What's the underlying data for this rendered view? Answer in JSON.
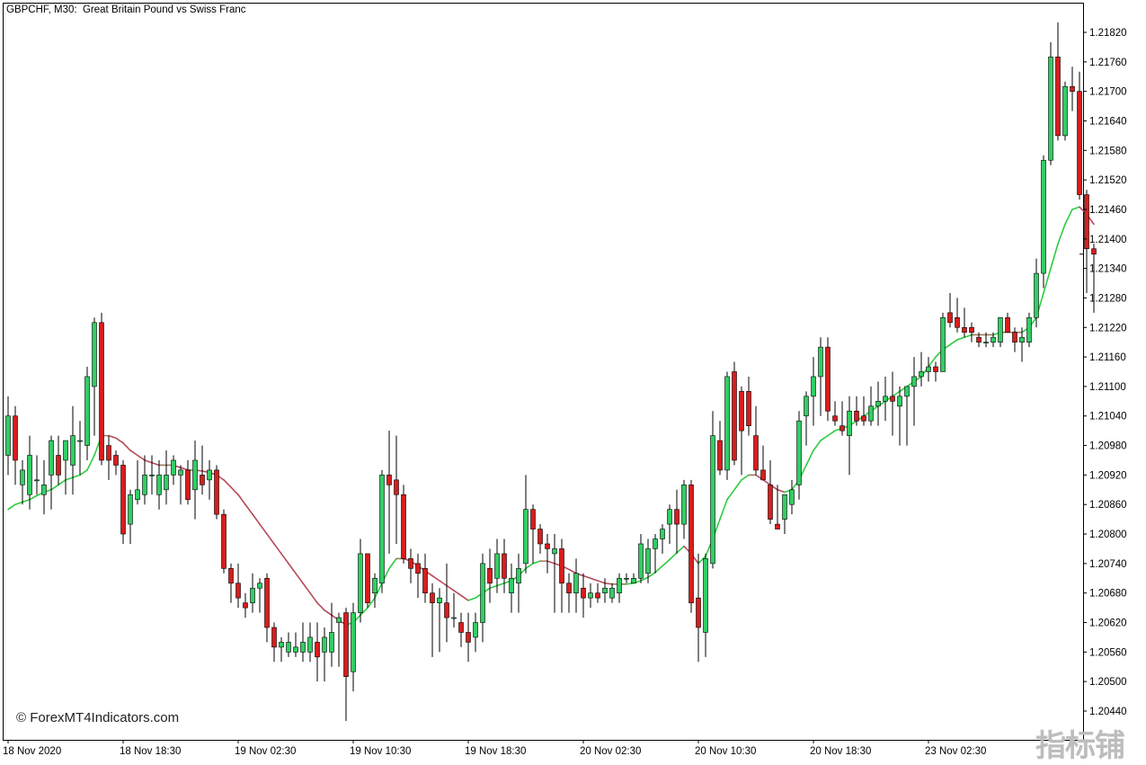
{
  "window": {
    "title": "GBPCHF, M30:  Great Britain Pound vs Swiss Franc",
    "watermark": "© ForexMT4Indicators.com",
    "logo_text": "指标铺"
  },
  "colors": {
    "bull": "#32cd64",
    "bear": "#d81d1d",
    "wick": "#000000",
    "ma_up": "#2ecc40",
    "ma_down": "#b74a5a",
    "ma_flat": "#9a7a5a",
    "grid_axis": "#000000"
  },
  "chart_data": {
    "type": "candlestick",
    "symbol": "GBPCHF",
    "timeframe": "M30",
    "y_ticks": [
      "1.21820",
      "1.21760",
      "1.21700",
      "1.21640",
      "1.21580",
      "1.21520",
      "1.21460",
      "1.21400",
      "1.21340",
      "1.21280",
      "1.21220",
      "1.21160",
      "1.21100",
      "1.21040",
      "1.20980",
      "1.20920",
      "1.20860",
      "1.20800",
      "1.20740",
      "1.20680",
      "1.20620",
      "1.20560",
      "1.20500",
      "1.20440"
    ],
    "x_ticks": [
      {
        "label": "18 Nov 2020",
        "index": 0
      },
      {
        "label": "18 Nov 18:30",
        "index": 16
      },
      {
        "label": "19 Nov 02:30",
        "index": 32
      },
      {
        "label": "19 Nov 10:30",
        "index": 48
      },
      {
        "label": "19 Nov 18:30",
        "index": 64
      },
      {
        "label": "20 Nov 02:30",
        "index": 80
      },
      {
        "label": "20 Nov 10:30",
        "index": 96
      },
      {
        "label": "20 Nov 18:30",
        "index": 112
      },
      {
        "label": "23 Nov 02:30",
        "index": 128
      }
    ],
    "ylim": [
      1.20405,
      1.21865
    ],
    "grid": false,
    "current_price": "1.21369",
    "candles": [
      [
        1.2096,
        1.2108,
        1.2092,
        1.2104
      ],
      [
        1.2104,
        1.2106,
        1.209,
        1.2095
      ],
      [
        1.209,
        1.2095,
        1.2086,
        1.2093
      ],
      [
        1.2088,
        1.21,
        1.2085,
        1.2096
      ],
      [
        1.2091,
        1.2096,
        1.2088,
        1.2091
      ],
      [
        1.2088,
        1.2095,
        1.2084,
        1.209
      ],
      [
        1.2092,
        1.21,
        1.2085,
        1.2099
      ],
      [
        1.2096,
        1.21,
        1.209,
        1.2092
      ],
      [
        1.2095,
        1.2099,
        1.2088,
        1.2099
      ],
      [
        1.2094,
        1.2106,
        1.2088,
        1.21
      ],
      [
        1.2099,
        1.2103,
        1.2092,
        1.2099
      ],
      [
        1.2098,
        1.2114,
        1.2095,
        1.2112
      ],
      [
        1.211,
        1.2124,
        1.21,
        1.2123
      ],
      [
        1.2123,
        1.2125,
        1.2094,
        1.2095
      ],
      [
        1.2098,
        1.21,
        1.2091,
        1.2095
      ],
      [
        1.2096,
        1.2097,
        1.2092,
        1.2094
      ],
      [
        1.2094,
        1.2095,
        1.2078,
        1.208
      ],
      [
        1.2082,
        1.2089,
        1.2078,
        1.2088
      ],
      [
        1.2087,
        1.2095,
        1.2086,
        1.2089
      ],
      [
        1.2088,
        1.2096,
        1.2086,
        1.2092
      ],
      [
        1.2092,
        1.2096,
        1.2088,
        1.2092
      ],
      [
        1.2088,
        1.2095,
        1.2085,
        1.2092
      ],
      [
        1.2089,
        1.2097,
        1.2086,
        1.2092
      ],
      [
        1.2092,
        1.2096,
        1.209,
        1.2095
      ],
      [
        1.2092,
        1.2094,
        1.2086,
        1.2093
      ],
      [
        1.2093,
        1.2095,
        1.2086,
        1.2087
      ],
      [
        1.2089,
        1.2099,
        1.2083,
        1.2095
      ],
      [
        1.2092,
        1.2098,
        1.2088,
        1.209
      ],
      [
        1.2091,
        1.2095,
        1.2087,
        1.2093
      ],
      [
        1.2093,
        1.2094,
        1.2083,
        1.2084
      ],
      [
        1.2084,
        1.2085,
        1.2072,
        1.2073
      ],
      [
        1.2073,
        1.2074,
        1.2066,
        1.207
      ],
      [
        1.207,
        1.2074,
        1.2065,
        1.2067
      ],
      [
        1.2066,
        1.2068,
        1.2063,
        1.2065
      ],
      [
        1.2066,
        1.2072,
        1.2064,
        1.2069
      ],
      [
        1.2069,
        1.2071,
        1.2064,
        1.207
      ],
      [
        1.2071,
        1.2072,
        1.2058,
        1.2061
      ],
      [
        1.2061,
        1.2062,
        1.2054,
        1.2057
      ],
      [
        1.2057,
        1.2059,
        1.2054,
        1.2058
      ],
      [
        1.2056,
        1.206,
        1.2055,
        1.2058
      ],
      [
        1.2056,
        1.206,
        1.2055,
        1.2057
      ],
      [
        1.2056,
        1.2062,
        1.2054,
        1.2058
      ],
      [
        1.2056,
        1.2062,
        1.2054,
        1.2059
      ],
      [
        1.2058,
        1.2062,
        1.205,
        1.2055
      ],
      [
        1.2056,
        1.2061,
        1.205,
        1.2059
      ],
      [
        1.2056,
        1.2066,
        1.2053,
        1.206
      ],
      [
        1.2062,
        1.2064,
        1.2053,
        1.2063
      ],
      [
        1.2064,
        1.2065,
        1.2042,
        1.2051
      ],
      [
        1.2052,
        1.2066,
        1.2048,
        1.2064
      ],
      [
        1.2064,
        1.2079,
        1.2062,
        1.2076
      ],
      [
        1.2076,
        1.2076,
        1.2065,
        1.2066
      ],
      [
        1.2068,
        1.2072,
        1.2065,
        1.2071
      ],
      [
        1.207,
        1.2093,
        1.2068,
        1.2092
      ],
      [
        1.2092,
        1.2101,
        1.2076,
        1.209
      ],
      [
        1.2091,
        1.21,
        1.2078,
        1.2088
      ],
      [
        1.2088,
        1.209,
        1.2074,
        1.2075
      ],
      [
        1.2075,
        1.2077,
        1.207,
        1.2073
      ],
      [
        1.2074,
        1.2076,
        1.2067,
        1.2072
      ],
      [
        1.2073,
        1.2076,
        1.2066,
        1.2068
      ],
      [
        1.2068,
        1.207,
        1.2055,
        1.2066
      ],
      [
        1.2066,
        1.2069,
        1.2056,
        1.2067
      ],
      [
        1.2066,
        1.2074,
        1.2058,
        1.2063
      ],
      [
        1.2063,
        1.2068,
        1.2061,
        1.2063
      ],
      [
        1.2062,
        1.2064,
        1.2057,
        1.206
      ],
      [
        1.206,
        1.2064,
        1.2054,
        1.2058
      ],
      [
        1.2059,
        1.2064,
        1.2056,
        1.2062
      ],
      [
        1.2062,
        1.2076,
        1.2058,
        1.2074
      ],
      [
        1.2073,
        1.2077,
        1.2066,
        1.207
      ],
      [
        1.2071,
        1.2079,
        1.2068,
        1.2076
      ],
      [
        1.2076,
        1.2079,
        1.2068,
        1.2071
      ],
      [
        1.2068,
        1.2074,
        1.2064,
        1.2071
      ],
      [
        1.207,
        1.2076,
        1.2064,
        1.2073
      ],
      [
        1.2074,
        1.2092,
        1.2072,
        1.2085
      ],
      [
        1.2085,
        1.2086,
        1.2074,
        1.2081
      ],
      [
        1.2081,
        1.2082,
        1.2076,
        1.2078
      ],
      [
        1.2078,
        1.208,
        1.2072,
        1.2077
      ],
      [
        1.2076,
        1.208,
        1.2064,
        1.2077
      ],
      [
        1.2077,
        1.2079,
        1.2064,
        1.207
      ],
      [
        1.207,
        1.2072,
        1.2064,
        1.2068
      ],
      [
        1.2068,
        1.2075,
        1.2064,
        1.2072
      ],
      [
        1.2069,
        1.2072,
        1.2063,
        1.2067
      ],
      [
        1.2067,
        1.207,
        1.2065,
        1.2068
      ],
      [
        1.2068,
        1.207,
        1.2066,
        1.2067
      ],
      [
        1.2068,
        1.2071,
        1.2066,
        1.2069
      ],
      [
        1.2067,
        1.207,
        1.2066,
        1.2069
      ],
      [
        1.2068,
        1.2072,
        1.2066,
        1.2071
      ],
      [
        1.2071,
        1.2072,
        1.207,
        1.2071
      ],
      [
        1.207,
        1.2072,
        1.207,
        1.2071
      ],
      [
        1.2071,
        1.208,
        1.207,
        1.2078
      ],
      [
        1.2072,
        1.2079,
        1.207,
        1.2077
      ],
      [
        1.2077,
        1.208,
        1.2072,
        1.2079
      ],
      [
        1.2079,
        1.2082,
        1.2076,
        1.2081
      ],
      [
        1.2082,
        1.2086,
        1.2078,
        1.2085
      ],
      [
        1.2085,
        1.2089,
        1.2076,
        1.2082
      ],
      [
        1.2082,
        1.2091,
        1.2079,
        1.209
      ],
      [
        1.209,
        1.2091,
        1.2064,
        1.2066
      ],
      [
        1.2067,
        1.2076,
        1.2054,
        1.2061
      ],
      [
        1.206,
        1.2076,
        1.2055,
        1.2075
      ],
      [
        1.2074,
        1.2105,
        1.2073,
        1.21
      ],
      [
        1.2099,
        1.2103,
        1.2092,
        1.2093
      ],
      [
        1.2093,
        1.2113,
        1.2091,
        1.2112
      ],
      [
        1.2113,
        1.2115,
        1.2094,
        1.2095
      ],
      [
        1.2109,
        1.211,
        1.2092,
        1.2101
      ],
      [
        1.2109,
        1.2112,
        1.21,
        1.2102
      ],
      [
        1.21,
        1.2106,
        1.2092,
        1.2093
      ],
      [
        1.2093,
        1.2098,
        1.2091,
        1.2091
      ],
      [
        1.209,
        1.2095,
        1.2082,
        1.2083
      ],
      [
        1.2082,
        1.209,
        1.2081,
        1.2081
      ],
      [
        1.2083,
        1.2088,
        1.208,
        1.2088
      ],
      [
        1.2086,
        1.2091,
        1.2084,
        1.2089
      ],
      [
        1.209,
        1.2105,
        1.2087,
        1.2103
      ],
      [
        1.2104,
        1.2109,
        1.2098,
        1.2108
      ],
      [
        1.2108,
        1.2116,
        1.2102,
        1.2112
      ],
      [
        1.2112,
        1.212,
        1.2104,
        1.2118
      ],
      [
        1.2118,
        1.212,
        1.2103,
        1.2105
      ],
      [
        1.2104,
        1.2107,
        1.2102,
        1.2103
      ],
      [
        1.2102,
        1.2107,
        1.21,
        1.2101
      ],
      [
        1.21,
        1.2108,
        1.2092,
        1.2105
      ],
      [
        1.2105,
        1.2108,
        1.2102,
        1.2103
      ],
      [
        1.2104,
        1.2108,
        1.2102,
        1.2103
      ],
      [
        1.2103,
        1.211,
        1.2102,
        1.2106
      ],
      [
        1.2106,
        1.2111,
        1.2102,
        1.2107
      ],
      [
        1.2107,
        1.2112,
        1.2103,
        1.2108
      ],
      [
        1.2108,
        1.2113,
        1.21,
        1.2107
      ],
      [
        1.2106,
        1.211,
        1.2098,
        1.2108
      ],
      [
        1.2108,
        1.211,
        1.2098,
        1.211
      ],
      [
        1.211,
        1.2116,
        1.2102,
        1.2112
      ],
      [
        1.2112,
        1.2117,
        1.211,
        1.2113
      ],
      [
        1.2113,
        1.2116,
        1.2111,
        1.2114
      ],
      [
        1.2114,
        1.2115,
        1.2111,
        1.2113
      ],
      [
        1.2113,
        1.2125,
        1.2113,
        1.2124
      ],
      [
        1.2125,
        1.2129,
        1.2122,
        1.2123
      ],
      [
        1.2124,
        1.2128,
        1.2121,
        1.2122
      ],
      [
        1.2122,
        1.2126,
        1.212,
        1.2121
      ],
      [
        1.2122,
        1.2123,
        1.2119,
        1.2121
      ],
      [
        1.212,
        1.2121,
        1.2118,
        1.2119
      ],
      [
        1.2119,
        1.2121,
        1.2118,
        1.2119
      ],
      [
        1.2119,
        1.2121,
        1.2118,
        1.212
      ],
      [
        1.2119,
        1.2124,
        1.2118,
        1.2124
      ],
      [
        1.2124,
        1.2125,
        1.2121,
        1.2121
      ],
      [
        1.2121,
        1.2122,
        1.2117,
        1.2119
      ],
      [
        1.2119,
        1.2122,
        1.2115,
        1.212
      ],
      [
        1.2119,
        1.2125,
        1.2118,
        1.2124
      ],
      [
        1.2124,
        1.2136,
        1.2122,
        1.2133
      ],
      [
        1.2133,
        1.2157,
        1.213,
        1.2156
      ],
      [
        1.2156,
        1.218,
        1.2155,
        1.2177
      ],
      [
        1.2177,
        1.2184,
        1.216,
        1.2161
      ],
      [
        1.2161,
        1.2172,
        1.216,
        1.2171
      ],
      [
        1.2171,
        1.2175,
        1.2166,
        1.217
      ],
      [
        1.217,
        1.2174,
        1.2148,
        1.2149
      ],
      [
        1.2149,
        1.215,
        1.2129,
        1.2138
      ],
      [
        1.2138,
        1.2139,
        1.2125,
        1.21369
      ]
    ],
    "ma": [
      1.2085,
      1.2086,
      1.20865,
      1.2087,
      1.20878,
      1.20885,
      1.2089,
      1.209,
      1.2091,
      1.20915,
      1.2092,
      1.2093,
      1.2096,
      1.21,
      1.21,
      1.20995,
      1.20985,
      1.2097,
      1.2096,
      1.2095,
      1.20945,
      1.2094,
      1.2094,
      1.2094,
      1.20935,
      1.2093,
      1.2093,
      1.20928,
      1.20925,
      1.2092,
      1.2091,
      1.20895,
      1.2088,
      1.2086,
      1.2084,
      1.2082,
      1.208,
      1.2078,
      1.2076,
      1.2074,
      1.2072,
      1.207,
      1.2068,
      1.2066,
      1.20645,
      1.20635,
      1.20625,
      1.20615,
      1.2062,
      1.20635,
      1.2065,
      1.2067,
      1.207,
      1.2073,
      1.2075,
      1.2075,
      1.20745,
      1.20735,
      1.20725,
      1.20715,
      1.20705,
      1.20695,
      1.20685,
      1.20675,
      1.20665,
      1.2067,
      1.2068,
      1.2069,
      1.20695,
      1.207,
      1.20705,
      1.20715,
      1.2073,
      1.2074,
      1.20745,
      1.20745,
      1.2074,
      1.20735,
      1.20728,
      1.2072,
      1.20715,
      1.2071,
      1.20705,
      1.207,
      1.20698,
      1.20698,
      1.20698,
      1.207,
      1.20705,
      1.20712,
      1.20722,
      1.20735,
      1.20748,
      1.20762,
      1.20775,
      1.2076,
      1.2074,
      1.20755,
      1.2079,
      1.2083,
      1.2087,
      1.2089,
      1.2091,
      1.2092,
      1.2092,
      1.2091,
      1.209,
      1.2089,
      1.20885,
      1.2089,
      1.2091,
      1.2094,
      1.2097,
      1.2099,
      1.21,
      1.2101,
      1.21015,
      1.2102,
      1.2103,
      1.2104,
      1.2105,
      1.2106,
      1.2107,
      1.2108,
      1.2109,
      1.211,
      1.2111,
      1.2112,
      1.2114,
      1.2116,
      1.21175,
      1.21185,
      1.21195,
      1.212,
      1.21205,
      1.21205,
      1.21205,
      1.21205,
      1.2121,
      1.2121,
      1.2121,
      1.2121,
      1.2122,
      1.2124,
      1.2129,
      1.2134,
      1.2139,
      1.2143,
      1.2146,
      1.21465,
      1.2145,
      1.2143
    ]
  }
}
